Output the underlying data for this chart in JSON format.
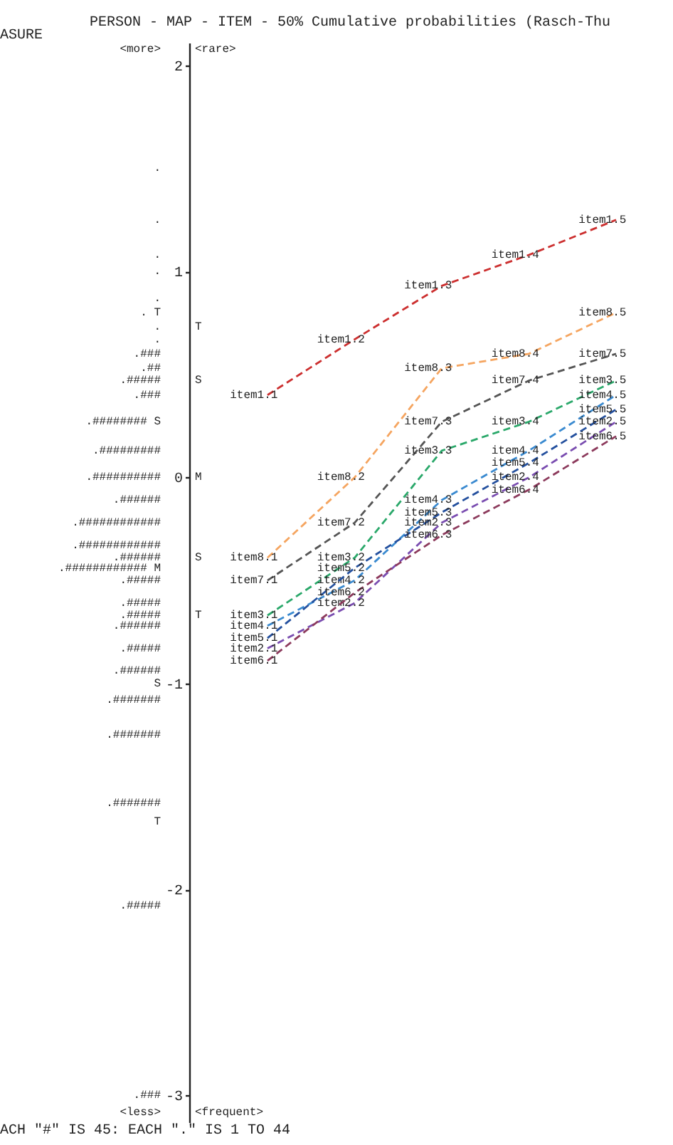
{
  "chart_data": {
    "type": "line",
    "title": "PERSON - MAP - ITEM - 50% Cumulative probabilities (Rasch-Thu",
    "categories": [
      null,
      null,
      null,
      null,
      null
    ],
    "series": [
      {
        "color": "#cc2f2f",
        "values": [
          0.4,
          0.67,
          0.93,
          1.08,
          1.25
        ],
        "value_labels": [
          "item1.1",
          "item1.2",
          "item1.3",
          "item1.4",
          "item1.5"
        ]
      },
      {
        "color": "#f5a560",
        "values": [
          -0.39,
          0,
          0.53,
          0.6,
          0.8
        ],
        "value_labels": [
          "item8.1",
          "item8.2",
          "item8.3",
          "item8.4",
          "item8.5"
        ]
      },
      {
        "color": "#555555",
        "values": [
          -0.5,
          -0.22,
          0.27,
          0.47,
          0.6
        ],
        "value_labels": [
          "item7.1",
          "item7.2",
          "item7.3",
          "item7.4",
          "item7.5"
        ]
      },
      {
        "color": "#2aa86a",
        "values": [
          -0.67,
          -0.39,
          0.13,
          0.27,
          0.47
        ],
        "value_labels": [
          "item3.1",
          "item3.2",
          "item3.3",
          "item3.4",
          "item3.5"
        ]
      },
      {
        "color": "#3a8ad0",
        "values": [
          -0.72,
          -0.5,
          -0.11,
          0.13,
          0.4
        ],
        "value_labels": [
          "item4.1",
          "item4.2",
          "item4.3",
          "item4.4",
          "item4.5"
        ]
      },
      {
        "color": "#24509e",
        "values": [
          -0.78,
          -0.44,
          -0.17,
          0.07,
          0.33
        ],
        "value_labels": [
          "item5.1",
          "item5.2",
          "item5.3",
          "item5.4",
          "item5.5"
        ]
      },
      {
        "color": "#7a4db0",
        "values": [
          -0.83,
          -0.61,
          -0.22,
          0,
          0.27
        ],
        "value_labels": [
          "item2.1",
          "item2.2",
          "item2.3",
          "item2.4",
          "item2.5"
        ]
      },
      {
        "color": "#8c3a5c",
        "values": [
          -0.89,
          -0.56,
          -0.28,
          -0.06,
          0.2
        ],
        "value_labels": [
          "item6.1",
          "item6.2",
          "item6.3",
          "item6.4",
          "item6.5"
        ]
      }
    ],
    "ylim": [
      -3.13,
      2.11
    ],
    "yticks": [
      2,
      1,
      0,
      -1,
      -2,
      -3
    ],
    "tick_labels": "y",
    "line_style": "dashed",
    "annotations": [
      "ASURE",
      "<more>",
      ".",
      ".",
      ".",
      ".",
      ".",
      ". T",
      ".",
      ".",
      ".###",
      ".##",
      ".#####",
      ".###",
      ".######## S",
      ".#########",
      ".##########",
      ".######",
      ".############",
      ".############",
      ".######",
      ".############ M",
      ".#####",
      ".#####",
      ".#####",
      ".######",
      ".#####",
      ".######",
      "S",
      ".#######",
      ".#######",
      ".#######",
      "T",
      ".#####",
      ".###",
      "<less>",
      "<rare>",
      "T",
      "S",
      "M",
      "S",
      "T",
      "<frequent>",
      "ACH \"#\" IS 45: EACH \".\" IS 1 TO 44"
    ]
  }
}
